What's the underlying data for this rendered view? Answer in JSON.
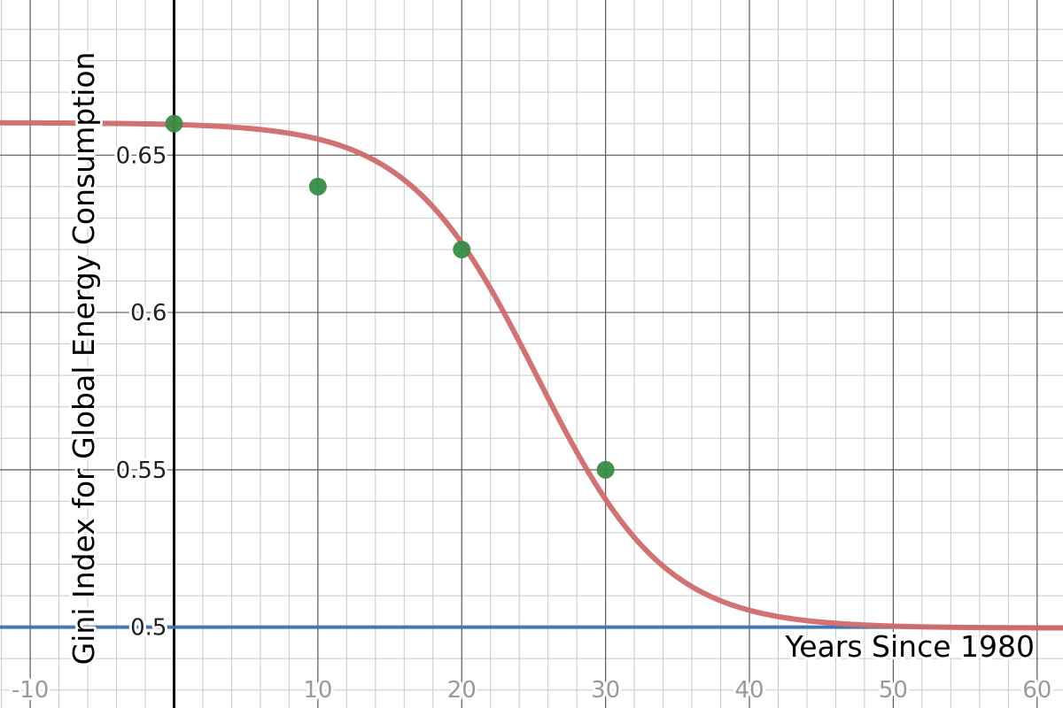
{
  "chart_data": {
    "type": "scatter",
    "title": "",
    "xlabel": "Years Since 1980",
    "ylabel": "Gini Index for Global Energy Consumption",
    "xlim": [
      -12.1,
      61.8
    ],
    "ylim": [
      0.4743,
      0.6993
    ],
    "x_ticks": [
      -10,
      10,
      20,
      30,
      40,
      50,
      60
    ],
    "x_tick_labels": [
      "-10",
      "10",
      "20",
      "30",
      "40",
      "50",
      "60"
    ],
    "y_ticks": [
      0.5,
      0.55,
      0.6,
      0.65
    ],
    "y_tick_labels": [
      "0.5",
      "0.55",
      "0.6",
      "0.65"
    ],
    "grid": true,
    "minor_grid_step_x": 2,
    "minor_grid_step_y": 0.01,
    "series": [
      {
        "kind": "points",
        "x": [
          0,
          10,
          20,
          30
        ],
        "y": [
          0.66,
          0.64,
          0.62,
          0.55
        ],
        "color": "#388c46"
      },
      {
        "kind": "logistic_fit",
        "lower": 0.4997,
        "upper": 0.6603,
        "midpoint": 25.2,
        "scale": 4.47,
        "color": "#d06a6a"
      },
      {
        "kind": "horizontal_line",
        "y": 0.5,
        "color": "#3d73b6"
      }
    ]
  }
}
